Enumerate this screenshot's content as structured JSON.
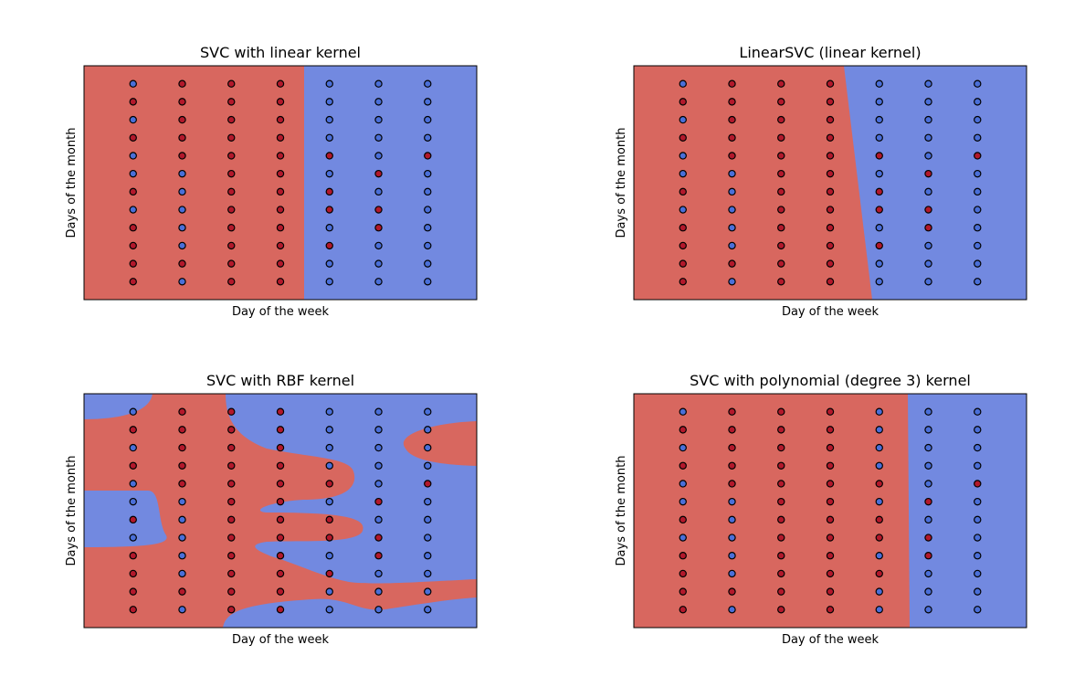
{
  "chart_data": [
    {
      "type": "scatter",
      "title": "SVC with linear kernel",
      "xlabel": "Day of the week",
      "ylabel": "Days of the month",
      "xlim": [
        -1,
        7
      ],
      "ylim": [
        0,
        13
      ],
      "series": [
        {
          "color": "#b2182b",
          "x": [
            1,
            2,
            3,
            0,
            1,
            2,
            3,
            1,
            2,
            3,
            0,
            1,
            2,
            3,
            1,
            2,
            3,
            4,
            6,
            2,
            3,
            5,
            0,
            2,
            3,
            4,
            2,
            3,
            4,
            5,
            0,
            2,
            3,
            5,
            0,
            2,
            3,
            4,
            0,
            1,
            2,
            3,
            0,
            2,
            3
          ],
          "y": [
            12,
            12,
            12,
            11,
            11,
            11,
            11,
            10,
            10,
            10,
            9,
            9,
            9,
            9,
            8,
            8,
            8,
            8,
            8,
            7,
            7,
            7,
            6,
            6,
            6,
            6,
            5,
            5,
            5,
            5,
            4,
            4,
            4,
            4,
            3,
            3,
            3,
            3,
            2,
            2,
            2,
            2,
            1,
            1,
            1
          ]
        },
        {
          "color": "#4a6fd8",
          "x": [
            0,
            4,
            5,
            6,
            4,
            5,
            6,
            0,
            4,
            5,
            6,
            4,
            5,
            6,
            0,
            5,
            0,
            1,
            4,
            6,
            1,
            5,
            6,
            0,
            1,
            6,
            1,
            4,
            6,
            1,
            5,
            6,
            4,
            5,
            6,
            1,
            4,
            5,
            6
          ],
          "y": [
            12,
            12,
            12,
            12,
            11,
            11,
            11,
            10,
            10,
            10,
            10,
            9,
            9,
            9,
            8,
            8,
            7,
            7,
            7,
            7,
            6,
            6,
            6,
            5,
            5,
            5,
            4,
            4,
            4,
            3,
            3,
            3,
            2,
            2,
            2,
            1,
            1,
            1,
            1
          ]
        }
      ]
    },
    {
      "type": "scatter",
      "title": "LinearSVC (linear kernel)",
      "xlabel": "Day of the week",
      "ylabel": "Days of the month",
      "xlim": [
        -1,
        7
      ],
      "ylim": [
        0,
        13
      ],
      "series": [
        {
          "color": "#b2182b",
          "x": [
            1,
            2,
            3,
            0,
            1,
            2,
            3,
            1,
            2,
            3,
            0,
            1,
            2,
            3,
            1,
            2,
            3,
            4,
            6,
            2,
            3,
            5,
            0,
            2,
            3,
            4,
            2,
            3,
            4,
            5,
            0,
            2,
            3,
            5,
            0,
            2,
            3,
            4,
            0,
            1,
            2,
            3,
            0,
            2,
            3
          ],
          "y": [
            12,
            12,
            12,
            11,
            11,
            11,
            11,
            10,
            10,
            10,
            9,
            9,
            9,
            9,
            8,
            8,
            8,
            8,
            8,
            7,
            7,
            7,
            6,
            6,
            6,
            6,
            5,
            5,
            5,
            5,
            4,
            4,
            4,
            4,
            3,
            3,
            3,
            3,
            2,
            2,
            2,
            2,
            1,
            1,
            1
          ]
        },
        {
          "color": "#4a6fd8",
          "x": [
            0,
            4,
            5,
            6,
            4,
            5,
            6,
            0,
            4,
            5,
            6,
            4,
            5,
            6,
            0,
            5,
            0,
            1,
            4,
            6,
            1,
            5,
            6,
            0,
            1,
            6,
            1,
            4,
            6,
            1,
            5,
            6,
            4,
            5,
            6,
            1,
            4,
            5,
            6
          ],
          "y": [
            12,
            12,
            12,
            12,
            11,
            11,
            11,
            10,
            10,
            10,
            10,
            9,
            9,
            9,
            8,
            8,
            7,
            7,
            7,
            7,
            6,
            6,
            6,
            5,
            5,
            5,
            4,
            4,
            4,
            3,
            3,
            3,
            2,
            2,
            2,
            1,
            1,
            1,
            1
          ]
        }
      ]
    },
    {
      "type": "scatter",
      "title": "SVC with RBF kernel",
      "xlabel": "Day of the week",
      "ylabel": "Days of the month",
      "xlim": [
        -1,
        7
      ],
      "ylim": [
        0,
        13
      ],
      "series": [
        {
          "color": "#b2182b",
          "x": [
            1,
            2,
            3,
            0,
            1,
            2,
            3,
            1,
            2,
            3,
            0,
            1,
            2,
            3,
            1,
            2,
            3,
            4,
            6,
            2,
            3,
            5,
            0,
            2,
            3,
            4,
            2,
            3,
            4,
            5,
            0,
            2,
            3,
            5,
            0,
            2,
            3,
            4,
            0,
            1,
            2,
            3,
            0,
            2,
            3
          ],
          "y": [
            12,
            12,
            12,
            11,
            11,
            11,
            11,
            10,
            10,
            10,
            9,
            9,
            9,
            9,
            8,
            8,
            8,
            8,
            8,
            7,
            7,
            7,
            6,
            6,
            6,
            6,
            5,
            5,
            5,
            5,
            4,
            4,
            4,
            4,
            3,
            3,
            3,
            3,
            2,
            2,
            2,
            2,
            1,
            1,
            1
          ]
        },
        {
          "color": "#4a6fd8",
          "x": [
            0,
            4,
            5,
            6,
            4,
            5,
            6,
            0,
            4,
            5,
            6,
            4,
            5,
            6,
            0,
            5,
            0,
            1,
            4,
            6,
            1,
            5,
            6,
            0,
            1,
            6,
            1,
            4,
            6,
            1,
            5,
            6,
            4,
            5,
            6,
            1,
            4,
            5,
            6
          ],
          "y": [
            12,
            12,
            12,
            12,
            11,
            11,
            11,
            10,
            10,
            10,
            10,
            9,
            9,
            9,
            8,
            8,
            7,
            7,
            7,
            7,
            6,
            6,
            6,
            5,
            5,
            5,
            4,
            4,
            4,
            3,
            3,
            3,
            2,
            2,
            2,
            1,
            1,
            1,
            1
          ]
        }
      ]
    },
    {
      "type": "scatter",
      "title": "SVC with polynomial (degree 3) kernel",
      "xlabel": "Day of the week",
      "ylabel": "Days of the month",
      "xlim": [
        -1,
        7
      ],
      "ylim": [
        0,
        13
      ],
      "series": [
        {
          "color": "#b2182b",
          "x": [
            1,
            2,
            3,
            0,
            1,
            2,
            3,
            1,
            2,
            3,
            0,
            1,
            2,
            3,
            1,
            2,
            3,
            4,
            6,
            2,
            3,
            5,
            0,
            2,
            3,
            4,
            2,
            3,
            4,
            5,
            0,
            2,
            3,
            5,
            0,
            2,
            3,
            4,
            0,
            1,
            2,
            3,
            0,
            2,
            3
          ],
          "y": [
            12,
            12,
            12,
            11,
            11,
            11,
            11,
            10,
            10,
            10,
            9,
            9,
            9,
            9,
            8,
            8,
            8,
            8,
            8,
            7,
            7,
            7,
            6,
            6,
            6,
            6,
            5,
            5,
            5,
            5,
            4,
            4,
            4,
            4,
            3,
            3,
            3,
            3,
            2,
            2,
            2,
            2,
            1,
            1,
            1
          ]
        },
        {
          "color": "#4a6fd8",
          "x": [
            0,
            4,
            5,
            6,
            4,
            5,
            6,
            0,
            4,
            5,
            6,
            4,
            5,
            6,
            0,
            5,
            0,
            1,
            4,
            6,
            1,
            5,
            6,
            0,
            1,
            6,
            1,
            4,
            6,
            1,
            5,
            6,
            4,
            5,
            6,
            1,
            4,
            5,
            6
          ],
          "y": [
            12,
            12,
            12,
            12,
            11,
            11,
            11,
            10,
            10,
            10,
            10,
            9,
            9,
            9,
            8,
            8,
            7,
            7,
            7,
            7,
            6,
            6,
            6,
            5,
            5,
            5,
            4,
            4,
            4,
            3,
            3,
            3,
            2,
            2,
            2,
            1,
            1,
            1,
            1
          ]
        }
      ]
    }
  ]
}
